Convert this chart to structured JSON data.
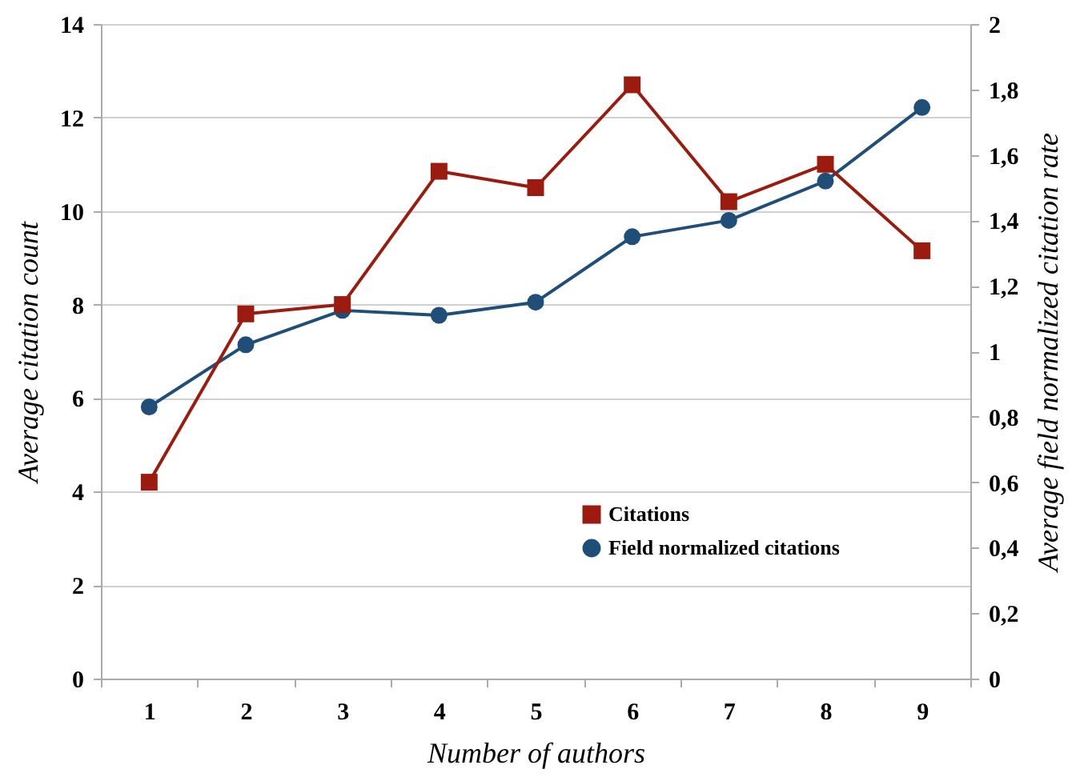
{
  "chart_data": {
    "type": "line",
    "xlabel": "Number of authors",
    "ylabel": "Average citation count",
    "y2label": "Average field normalized citation rate",
    "categories": [
      "1",
      "2",
      "3",
      "4",
      "5",
      "6",
      "7",
      "8",
      "9"
    ],
    "series": [
      {
        "name": "Citations",
        "color": "#9b1b0f",
        "marker": "square",
        "values": [
          4.2,
          7.8,
          8.0,
          10.85,
          10.5,
          12.7,
          10.2,
          11.0,
          9.15
        ]
      },
      {
        "name": "Field normalized citations",
        "color": "#1f4e79",
        "marker": "circle",
        "axis": "y2",
        "values": [
          0.83,
          1.02,
          1.125,
          1.11,
          1.15,
          1.35,
          1.4,
          1.52,
          1.745
        ]
      }
    ],
    "ylim": [
      0,
      14
    ],
    "yticks": [
      0,
      2,
      4,
      6,
      8,
      10,
      12,
      14
    ],
    "y2lim": [
      0,
      2
    ],
    "y2ticks": [
      0,
      {
        "value": 0.2,
        "label": "0,2"
      },
      {
        "value": 0.4,
        "label": "0,4"
      },
      {
        "value": 0.6,
        "label": "0,6"
      },
      {
        "value": 0.8,
        "label": "0,8"
      },
      1,
      {
        "value": 1.2,
        "label": "1,2"
      },
      {
        "value": 1.4,
        "label": "1,4"
      },
      {
        "value": 1.6,
        "label": "1,6"
      },
      {
        "value": 1.8,
        "label": "1,8"
      },
      2
    ],
    "grid": "y",
    "legend": "bottom right",
    "line_style": "solid"
  }
}
